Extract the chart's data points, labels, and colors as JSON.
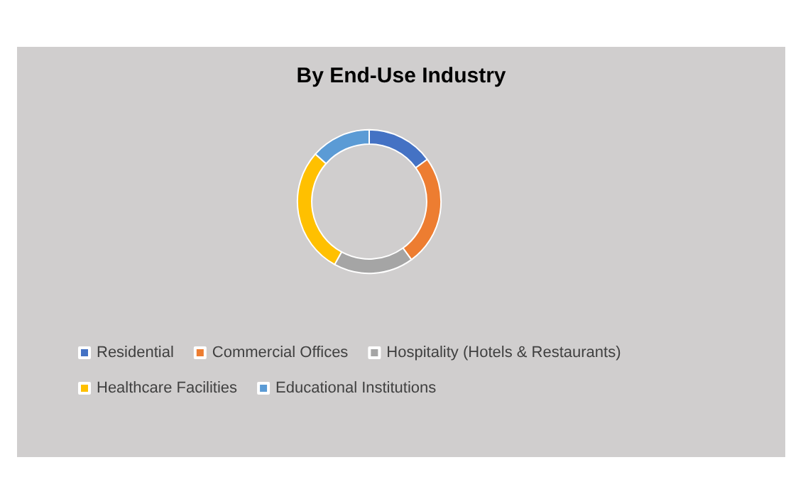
{
  "chart_data": {
    "type": "donut",
    "title": "By End-Use Industry",
    "categories": [
      "Residential",
      "Commercial Offices",
      "Hospitality (Hotels & Restaurants)",
      "Healthcare Facilities",
      "Educational Institutions"
    ],
    "values": [
      15,
      25,
      18,
      28.5,
      13.5
    ],
    "colors": [
      "#4472c4",
      "#ed7d31",
      "#a5a5a5",
      "#ffc000",
      "#5b9bd5"
    ],
    "legend": "bottom"
  }
}
